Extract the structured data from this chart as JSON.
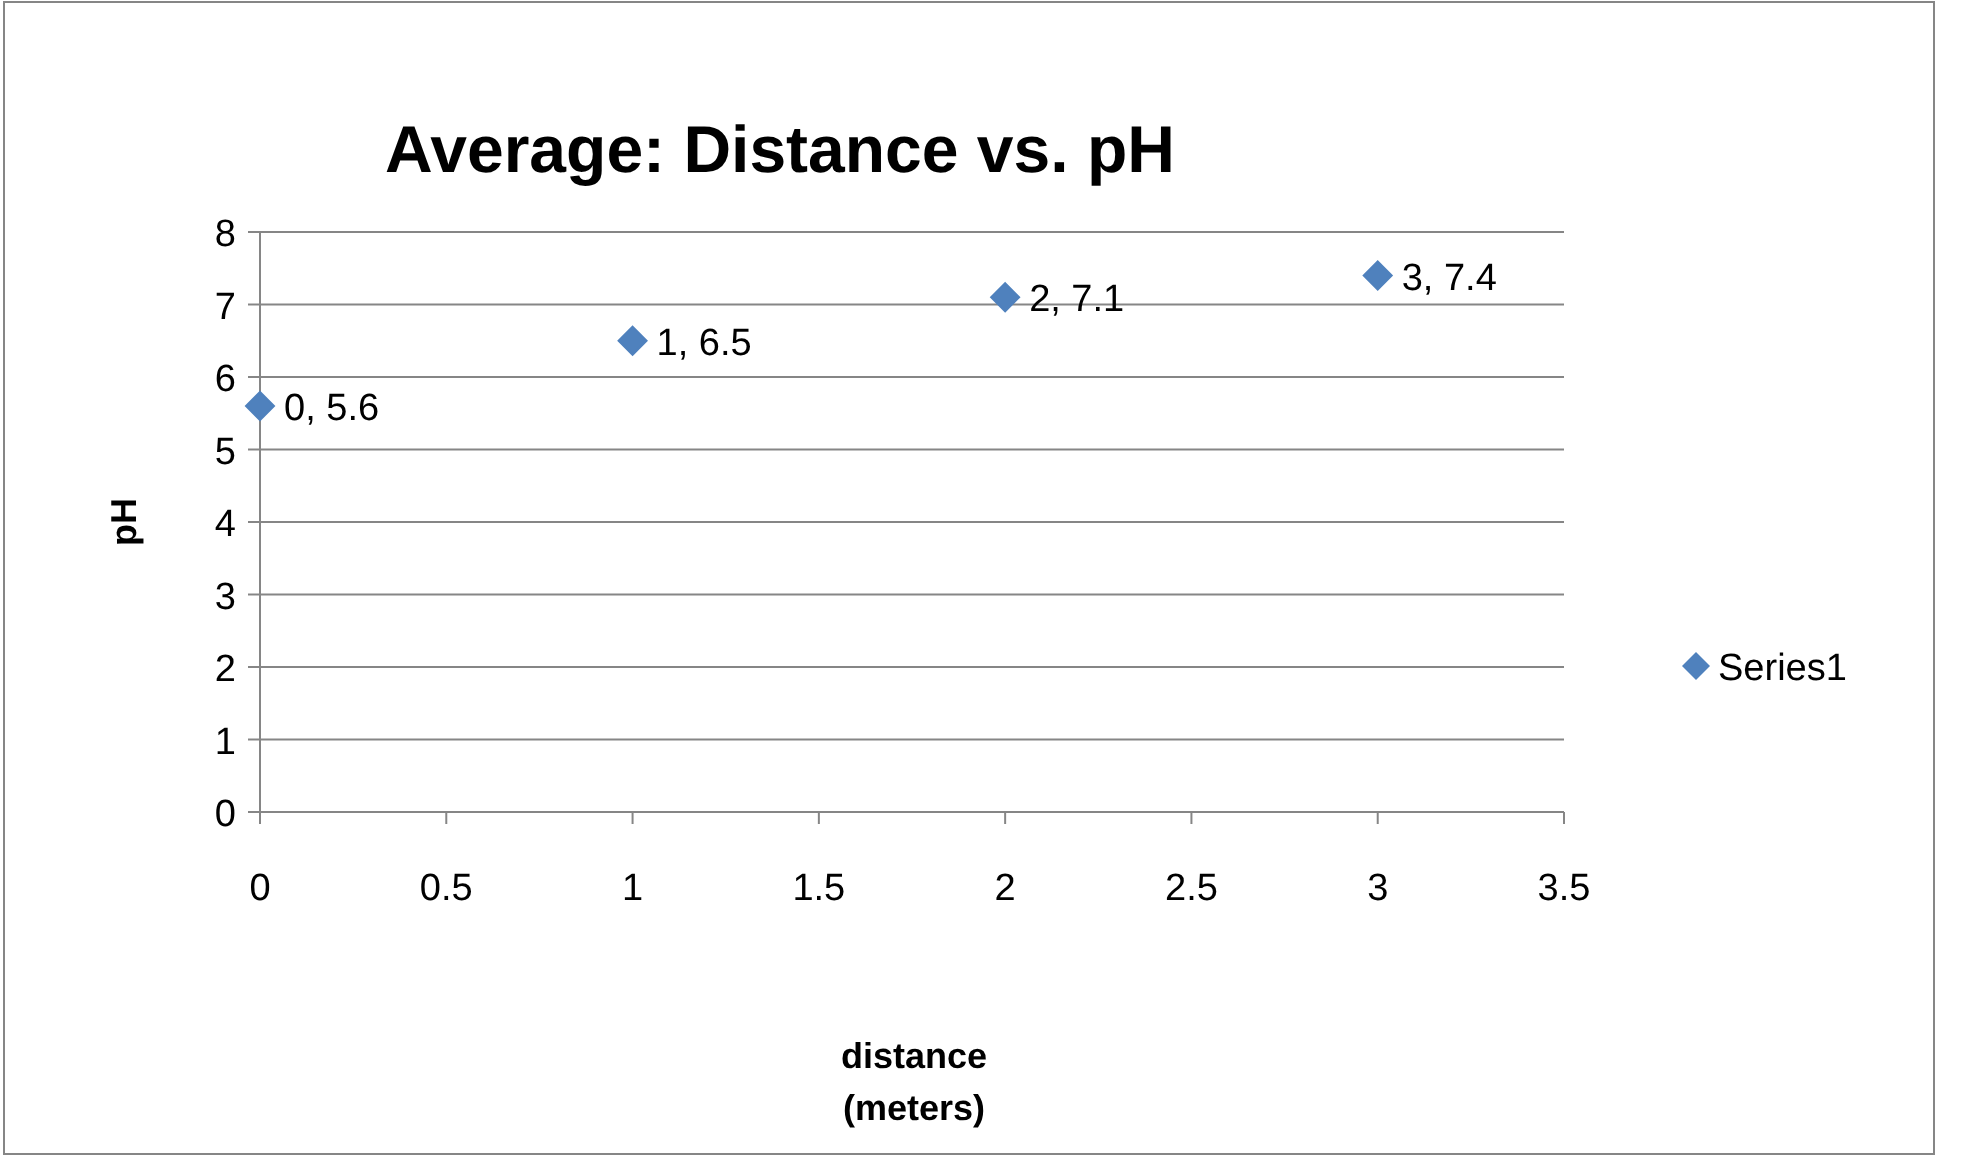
{
  "chart_data": {
    "type": "scatter",
    "title": "Average: Distance vs. pH",
    "xlabel": "distance (meters)",
    "ylabel": "pH",
    "x": [
      0,
      1,
      2,
      3
    ],
    "series": [
      {
        "name": "Series1",
        "color": "#4f81bd",
        "values": [
          5.6,
          6.5,
          7.1,
          7.4
        ],
        "value_labels": [
          "0, 5.6",
          "1, 6.5",
          "2, 7.1",
          "3, 7.4"
        ]
      }
    ],
    "xlim": [
      0,
      3.5
    ],
    "xticks": [
      0,
      0.5,
      1,
      1.5,
      2,
      2.5,
      3,
      3.5
    ],
    "ylim": [
      0,
      8
    ],
    "yticks": [
      0,
      1,
      2,
      3,
      4,
      5,
      6,
      7,
      8
    ],
    "grid": "y",
    "legend": "right",
    "marker": "diamond"
  }
}
